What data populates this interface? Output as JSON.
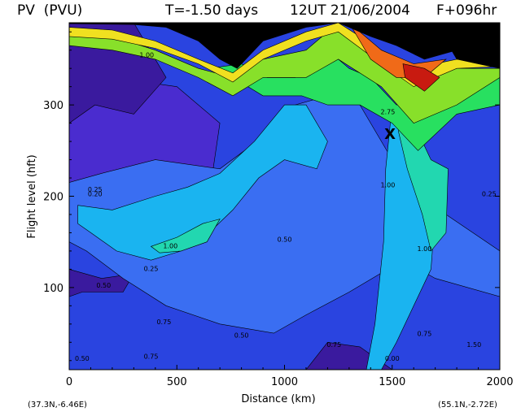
{
  "header": {
    "quantity": "PV  (PVU)",
    "time_offset": "T=-1.50 days",
    "valid_time": "12UT 21/06/2004",
    "forecast": "F+096hr"
  },
  "footer": {
    "start_point": "(37.3N,-6.46E)",
    "end_point": "(55.1N,-2.72E)"
  },
  "chart_data": {
    "type": "heatmap",
    "title": "PV  (PVU)  T=-1.50 days  12UT 21/06/2004  F+096hr",
    "xlabel": "Distance  (km)",
    "ylabel": "Flight level  (hft)",
    "xlim": [
      0,
      2000
    ],
    "ylim": [
      10,
      390
    ],
    "x_ticks": [
      "0",
      "500",
      "1000",
      "1500",
      "2000"
    ],
    "y_ticks": [
      "100",
      "200",
      "300"
    ],
    "x_tick_values": [
      0,
      500,
      1000,
      1500,
      2000
    ],
    "y_tick_values": [
      100,
      200,
      300
    ],
    "contour_labels": [
      {
        "text": "1.00",
        "x": 360,
        "y": 352
      },
      {
        "text": "1.00",
        "x": 470,
        "y": 143
      },
      {
        "text": "1.00",
        "x": 1480,
        "y": 210
      },
      {
        "text": "1.00",
        "x": 1650,
        "y": 140
      },
      {
        "text": "0.75",
        "x": 440,
        "y": 60
      },
      {
        "text": "0.75",
        "x": 1650,
        "y": 47
      },
      {
        "text": "0.75",
        "x": 1230,
        "y": 35
      },
      {
        "text": "0.50",
        "x": 160,
        "y": 100
      },
      {
        "text": "0.50",
        "x": 1000,
        "y": 150
      },
      {
        "text": "0.50",
        "x": 800,
        "y": 45
      },
      {
        "text": "0.25",
        "x": 380,
        "y": 118
      },
      {
        "text": "0.25",
        "x": 120,
        "y": 205
      },
      {
        "text": "0.25",
        "x": 1950,
        "y": 200
      },
      {
        "text": "0.20",
        "x": 120,
        "y": 200
      },
      {
        "text": "0.00",
        "x": 1500,
        "y": 20
      },
      {
        "text": "0.50",
        "x": 60,
        "y": 20
      },
      {
        "text": "0.75",
        "x": 380,
        "y": 22
      },
      {
        "text": "2.75",
        "x": 1480,
        "y": 290
      },
      {
        "text": "1.50",
        "x": 1880,
        "y": 35
      }
    ],
    "marker": {
      "symbol": "X",
      "x": 1490,
      "y": 268
    },
    "colors": {
      "above_max": "#000000",
      "levels": [
        "#3a1a9e",
        "#4a2ccf",
        "#2a44e0",
        "#3a6ef2",
        "#1ab4f0",
        "#22d7b0",
        "#28e060",
        "#88e02a",
        "#f0e020",
        "#f5a020",
        "#f06a18",
        "#c81a10",
        "#8a0a08"
      ]
    }
  }
}
